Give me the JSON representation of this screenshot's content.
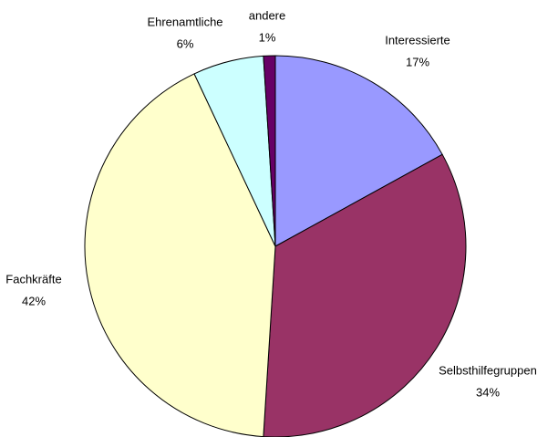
{
  "chart_data": {
    "type": "pie",
    "categories": [
      "Interessierte",
      "Selbsthilfegruppen",
      "Fachkräfte",
      "Ehrenamtliche",
      "andere"
    ],
    "values": [
      17,
      34,
      42,
      6,
      1
    ],
    "value_labels": [
      "17%",
      "34%",
      "42%",
      "6%",
      "1%"
    ],
    "colors": [
      "#9999ff",
      "#993366",
      "#ffffcc",
      "#ccffff",
      "#660066"
    ]
  }
}
